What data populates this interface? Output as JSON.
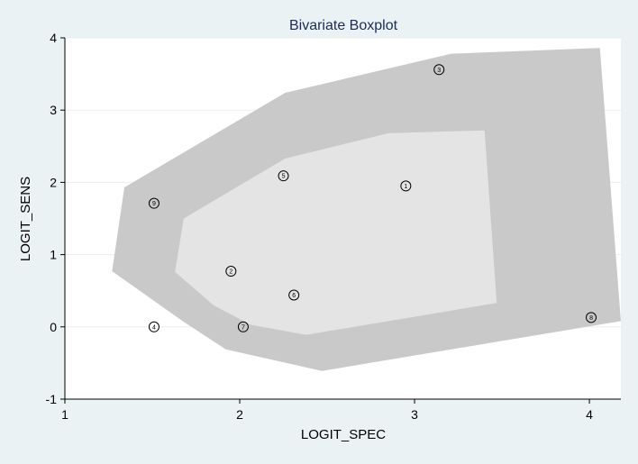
{
  "chart_data": {
    "type": "scatter",
    "title": "Bivariate Boxplot",
    "xlabel": "LOGIT_SPEC",
    "ylabel": "LOGIT_SENS",
    "xlim": [
      1,
      4.18
    ],
    "ylim": [
      -1,
      4
    ],
    "x_ticks": [
      1,
      2,
      3,
      4
    ],
    "y_ticks": [
      -1,
      0,
      1,
      2,
      3,
      4
    ],
    "x_tick_labels": [
      "1",
      "2",
      "3",
      "4"
    ],
    "y_tick_labels": [
      "-1",
      "0",
      "1",
      "2",
      "3",
      "4"
    ],
    "grid": true,
    "points": [
      {
        "label": "1",
        "x": 2.95,
        "y": 1.95
      },
      {
        "label": "2",
        "x": 1.95,
        "y": 0.77
      },
      {
        "label": "3",
        "x": 3.14,
        "y": 3.56
      },
      {
        "label": "4",
        "x": 1.51,
        "y": 0.0
      },
      {
        "label": "5",
        "x": 2.25,
        "y": 2.09
      },
      {
        "label": "6",
        "x": 2.31,
        "y": 0.44
      },
      {
        "label": "7",
        "x": 2.02,
        "y": 0.0
      },
      {
        "label": "8",
        "x": 4.01,
        "y": 0.13
      },
      {
        "label": "9",
        "x": 1.51,
        "y": 1.71
      }
    ],
    "fence": [
      [
        1.27,
        0.77
      ],
      [
        1.34,
        1.93
      ],
      [
        2.26,
        3.24
      ],
      [
        3.21,
        3.78
      ],
      [
        4.06,
        3.86
      ],
      [
        4.18,
        0.08
      ],
      [
        2.47,
        -0.61
      ],
      [
        1.92,
        -0.31
      ],
      [
        1.68,
        0.07
      ]
    ],
    "hinge": [
      [
        1.63,
        0.76
      ],
      [
        1.68,
        1.5
      ],
      [
        2.26,
        2.33
      ],
      [
        2.85,
        2.68
      ],
      [
        3.4,
        2.72
      ],
      [
        3.47,
        0.33
      ],
      [
        2.38,
        -0.11
      ],
      [
        2.06,
        0.03
      ],
      [
        1.85,
        0.3
      ]
    ],
    "colors": {
      "fence": "#c9c9c9",
      "hinge": "#e4e4e4",
      "plot_bg": "#ffffff",
      "outer_bg": "#eaf2f3",
      "grid": "#e8eef0",
      "title": "#1b2b5a"
    }
  }
}
